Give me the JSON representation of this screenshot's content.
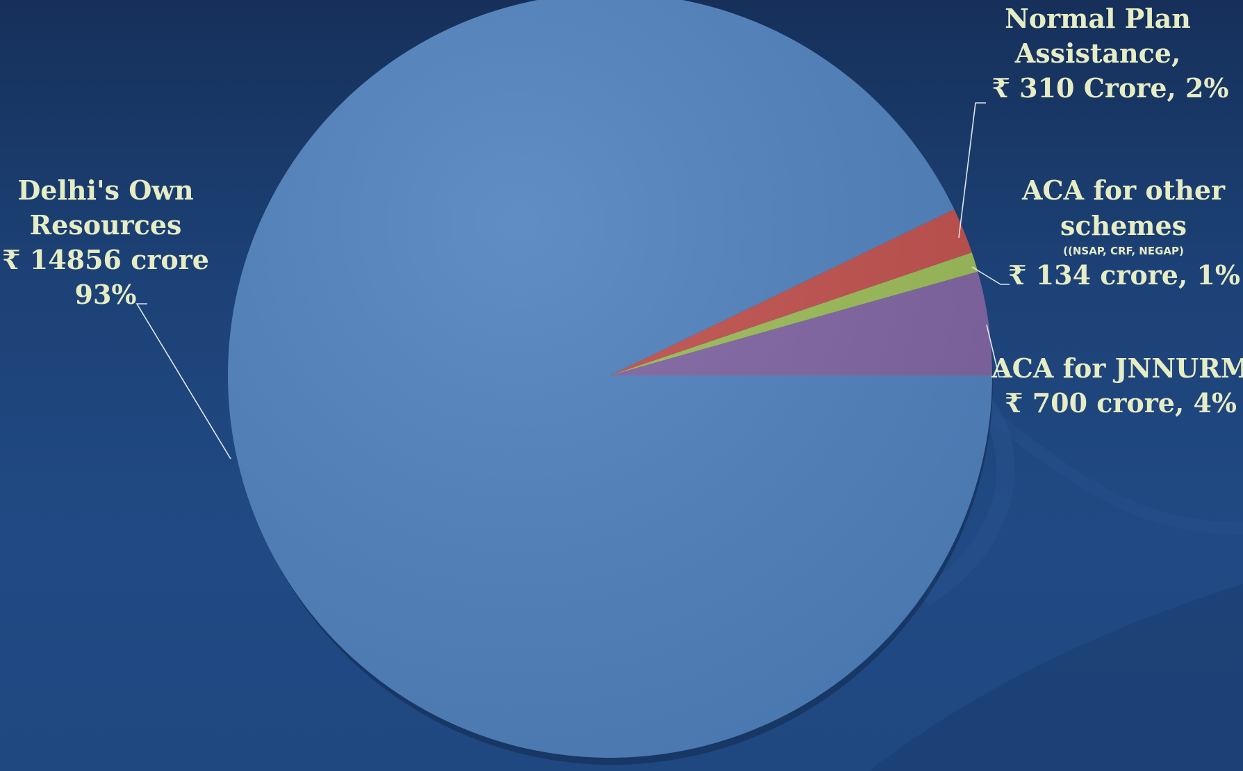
{
  "chart_data": {
    "type": "pie",
    "title": "",
    "slices": [
      {
        "name": "Delhi's Own Resources",
        "value": 14856,
        "percent": 93,
        "color": "#4f81bd",
        "label_lines": [
          "Delhi's Own",
          "Resources",
          "₹ 14856 crore",
          "93%"
        ]
      },
      {
        "name": "Normal Plan Assistance",
        "value": 310,
        "percent": 2,
        "color": "#c0504d",
        "label_lines": [
          "Normal Plan",
          "Assistance,",
          "₹ 310 Crore, 2%"
        ]
      },
      {
        "name": "ACA for other schemes",
        "value": 134,
        "percent": 1,
        "color": "#9bbb59",
        "label_lines": [
          "ACA for other",
          "schemes",
          "₹ 134 crore, 1%"
        ],
        "sublabel": "((NSAP, CRF, NEGAP)"
      },
      {
        "name": "ACA for JNNURM",
        "value": 700,
        "percent": 4,
        "color": "#8064a2",
        "label_lines": [
          "ACA for JNNURM",
          "₹ 700 crore, 4%"
        ]
      }
    ],
    "start_angle_deg": 0,
    "direction": "counterclockwise"
  }
}
